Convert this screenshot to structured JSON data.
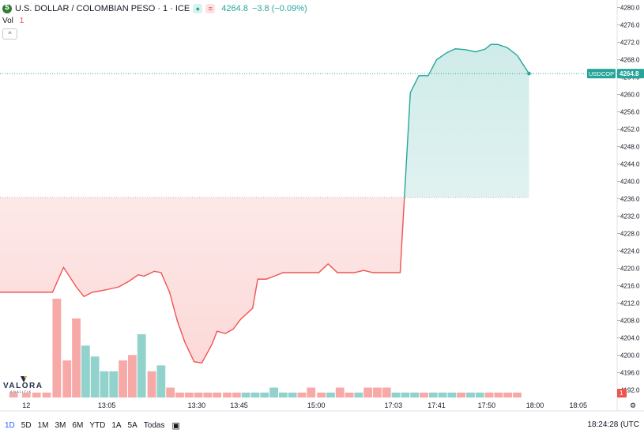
{
  "header": {
    "title": "U.S. DOLLAR / COLOMBIAN PESO · 1 · ICE",
    "last": "4264.8",
    "change": "−3.8 (−0.09%)",
    "vol_label": "Vol",
    "vol_value": "1",
    "collapse_glyph": "^"
  },
  "colors": {
    "up": "#26a69a",
    "down": "#ef5350",
    "accent": "#2962ff"
  },
  "chart_data": {
    "type": "area",
    "symbol": "USDCOP",
    "last_value": "4264.8",
    "baseline": 4236.3,
    "ylim": [
      4191,
      4281
    ],
    "y_ticks": [
      "4280.0",
      "4276.0",
      "4272.0",
      "4268.0",
      "4264.0",
      "4260.0",
      "4256.0",
      "4252.0",
      "4248.0",
      "4244.0",
      "4240.0",
      "4236.0",
      "4232.0",
      "4228.0",
      "4224.0",
      "4220.0",
      "4216.0",
      "4212.0",
      "4208.0",
      "4204.0",
      "4200.0",
      "4196.0",
      "4192.0"
    ],
    "x_ticks": [
      {
        "label": "12",
        "x": 0
      },
      {
        "label": "13:05",
        "x": 9.5
      },
      {
        "label": "13:30",
        "x": 20.1
      },
      {
        "label": "13:45",
        "x": 25.1
      },
      {
        "label": "15:00",
        "x": 34.2
      },
      {
        "label": "17:03",
        "x": 43.3
      },
      {
        "label": "17:41",
        "x": 48.4
      },
      {
        "label": "17:50",
        "x": 54.3
      },
      {
        "label": "18:00",
        "x": 60
      },
      {
        "label": "18:05",
        "x": 65.1
      }
    ],
    "x_range": [
      -3.1,
      69.6
    ],
    "series": [
      {
        "x": [
          -3.1,
          3.1,
          4.4,
          5.9,
          6.8,
          7.8,
          9.3,
          10.9,
          12.1,
          13.2,
          13.9,
          15.1,
          15.9,
          16.9,
          17.8,
          18.7,
          19.8,
          20.7,
          21.9,
          22.5,
          23.5,
          24.4,
          25.3,
          26.7,
          27.3,
          28.3,
          29.4,
          30.3,
          31.9,
          33.3,
          34.5,
          35.6,
          36.7,
          37.6,
          38.7,
          39.8,
          40.9,
          41.8,
          43,
          44.1,
          45.3,
          46.3,
          47.4,
          48.4,
          49.6,
          50.6,
          51.8,
          53,
          54.1,
          54.8,
          55.6,
          56.7,
          57.9,
          59.3
        ],
        "values": [
          4214.5,
          4214.5,
          4220.2,
          4215.7,
          4213.5,
          4214.5,
          4215,
          4215.7,
          4217,
          4218.5,
          4218.2,
          4219.3,
          4219,
          4214.5,
          4208,
          4203,
          4198.5,
          4198.2,
          4202.5,
          4205.5,
          4205,
          4206,
          4208.3,
          4210.8,
          4217.5,
          4217.5,
          4218.3,
          4219,
          4219,
          4219,
          4219,
          4221,
          4219,
          4219,
          4219,
          4219.5,
          4219,
          4219,
          4219,
          4219,
          4260.4,
          4264.3,
          4264.3,
          4268,
          4269.6,
          4270.5,
          4270.3,
          4269.8,
          4270.4,
          4271.5,
          4271.5,
          4270.8,
          4269,
          4264.8
        ]
      }
    ]
  },
  "volume": {
    "bars": [
      {
        "x": -1.5,
        "v": 1,
        "c": "down"
      },
      {
        "x": 0.0,
        "v": 1,
        "c": "down"
      },
      {
        "x": 1.2,
        "v": 1,
        "c": "down"
      },
      {
        "x": 2.4,
        "v": 1,
        "c": "down"
      },
      {
        "x": 3.6,
        "v": 20,
        "c": "down"
      },
      {
        "x": 4.8,
        "v": 7.5,
        "c": "down"
      },
      {
        "x": 5.9,
        "v": 16,
        "c": "down"
      },
      {
        "x": 7.0,
        "v": 10.5,
        "c": "up"
      },
      {
        "x": 8.1,
        "v": 8.3,
        "c": "up"
      },
      {
        "x": 9.2,
        "v": 5.3,
        "c": "up"
      },
      {
        "x": 10.3,
        "v": 5.3,
        "c": "up"
      },
      {
        "x": 11.4,
        "v": 7.5,
        "c": "down"
      },
      {
        "x": 12.5,
        "v": 8.6,
        "c": "down"
      },
      {
        "x": 13.6,
        "v": 12.8,
        "c": "up"
      },
      {
        "x": 14.8,
        "v": 5.3,
        "c": "down"
      },
      {
        "x": 15.9,
        "v": 6.5,
        "c": "up"
      },
      {
        "x": 17.0,
        "v": 2,
        "c": "down"
      },
      {
        "x": 18.1,
        "v": 1,
        "c": "down"
      },
      {
        "x": 19.2,
        "v": 1,
        "c": "down"
      },
      {
        "x": 20.3,
        "v": 1,
        "c": "down"
      },
      {
        "x": 21.4,
        "v": 1,
        "c": "down"
      },
      {
        "x": 22.5,
        "v": 1,
        "c": "down"
      },
      {
        "x": 23.7,
        "v": 1,
        "c": "down"
      },
      {
        "x": 24.8,
        "v": 1,
        "c": "down"
      },
      {
        "x": 25.9,
        "v": 1,
        "c": "up"
      },
      {
        "x": 27.0,
        "v": 1,
        "c": "up"
      },
      {
        "x": 28.1,
        "v": 1,
        "c": "up"
      },
      {
        "x": 29.2,
        "v": 2,
        "c": "up"
      },
      {
        "x": 30.3,
        "v": 1,
        "c": "up"
      },
      {
        "x": 31.4,
        "v": 1,
        "c": "up"
      },
      {
        "x": 32.5,
        "v": 1,
        "c": "down"
      },
      {
        "x": 33.6,
        "v": 2,
        "c": "down"
      },
      {
        "x": 34.8,
        "v": 1,
        "c": "down"
      },
      {
        "x": 35.9,
        "v": 1,
        "c": "up"
      },
      {
        "x": 37.0,
        "v": 2,
        "c": "down"
      },
      {
        "x": 38.1,
        "v": 1,
        "c": "down"
      },
      {
        "x": 39.2,
        "v": 1,
        "c": "up"
      },
      {
        "x": 40.3,
        "v": 2,
        "c": "down"
      },
      {
        "x": 41.4,
        "v": 2,
        "c": "down"
      },
      {
        "x": 42.5,
        "v": 2,
        "c": "down"
      },
      {
        "x": 43.6,
        "v": 1,
        "c": "up"
      },
      {
        "x": 44.7,
        "v": 1,
        "c": "up"
      },
      {
        "x": 45.8,
        "v": 1,
        "c": "up"
      },
      {
        "x": 46.9,
        "v": 1,
        "c": "down"
      },
      {
        "x": 48.0,
        "v": 1,
        "c": "up"
      },
      {
        "x": 49.1,
        "v": 1,
        "c": "up"
      },
      {
        "x": 50.2,
        "v": 1,
        "c": "up"
      },
      {
        "x": 51.3,
        "v": 1,
        "c": "down"
      },
      {
        "x": 52.4,
        "v": 1,
        "c": "up"
      },
      {
        "x": 53.5,
        "v": 1,
        "c": "up"
      },
      {
        "x": 54.6,
        "v": 1,
        "c": "down"
      },
      {
        "x": 55.7,
        "v": 1,
        "c": "down"
      },
      {
        "x": 56.8,
        "v": 1,
        "c": "down"
      },
      {
        "x": 57.9,
        "v": 1,
        "c": "down"
      }
    ],
    "vmax": 20,
    "last_value": "1"
  },
  "timeframes": [
    "1D",
    "5D",
    "1M",
    "3M",
    "6M",
    "YTD",
    "1A",
    "5A",
    "Todas"
  ],
  "active_timeframe": "1D",
  "clock": "18:24:28 (UTC",
  "logo": {
    "name": "VALORA",
    "sub": "ANALITIK"
  }
}
